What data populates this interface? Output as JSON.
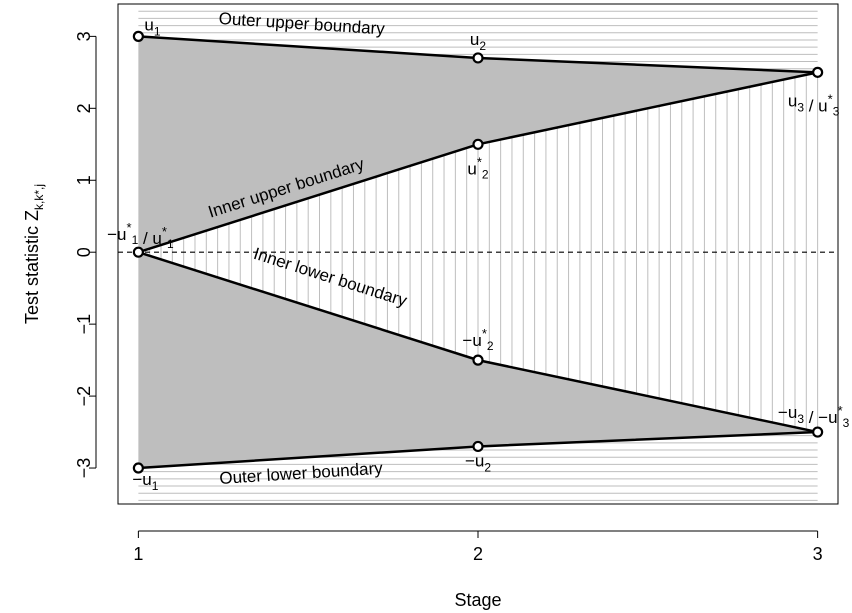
{
  "chart_data": {
    "type": "line",
    "xlabel": "Stage",
    "ylabel": "Test statistic Z",
    "ylabel_subscript": "k,k*,j",
    "xlim": [
      0.94,
      3.06
    ],
    "ylim": [
      -3.5,
      3.45
    ],
    "x_ticks": [
      1,
      2,
      3
    ],
    "y_ticks": [
      -3,
      -2,
      -1,
      0,
      1,
      2,
      3
    ],
    "reference_line_y": 0,
    "colors": {
      "shaded": "#bebebe",
      "hatch": "#bebebe",
      "line": "#000000"
    },
    "series": [
      {
        "name": "Outer upper boundary",
        "x": [
          1,
          2,
          3
        ],
        "y": [
          3.0,
          2.7,
          2.5
        ]
      },
      {
        "name": "Inner upper boundary",
        "x": [
          1,
          2,
          3
        ],
        "y": [
          0.0,
          1.5,
          2.5
        ]
      },
      {
        "name": "Inner lower boundary",
        "x": [
          1,
          2,
          3
        ],
        "y": [
          0.0,
          -1.5,
          -2.5
        ]
      },
      {
        "name": "Outer lower boundary",
        "x": [
          1,
          2,
          3
        ],
        "y": [
          -3.0,
          -2.7,
          -2.5
        ]
      }
    ],
    "point_labels": {
      "u1": {
        "pre": "u",
        "sub": "1"
      },
      "u2": {
        "pre": "u",
        "sub": "2"
      },
      "u2star": {
        "pre": "u",
        "sub": "2",
        "sup": "*"
      },
      "u3": {
        "pre": "u",
        "sub": "3",
        "mid": " / u",
        "sub2": "3",
        "sup2": "*"
      },
      "origin": {
        "pre": "−u",
        "sub": "1",
        "sup": "*",
        "mid": " / u",
        "sub2": "1",
        "sup2": "*"
      },
      "neg_u2star": {
        "pre": "−u",
        "sub": "2",
        "sup": "*"
      },
      "neg_u2": {
        "pre": "−u",
        "sub": "2"
      },
      "neg_u1": {
        "pre": "−u",
        "sub": "1"
      },
      "neg_u3": {
        "pre": "−u",
        "sub": "3",
        "mid": " / −u",
        "sub2": "3",
        "sup2": "*"
      }
    }
  }
}
